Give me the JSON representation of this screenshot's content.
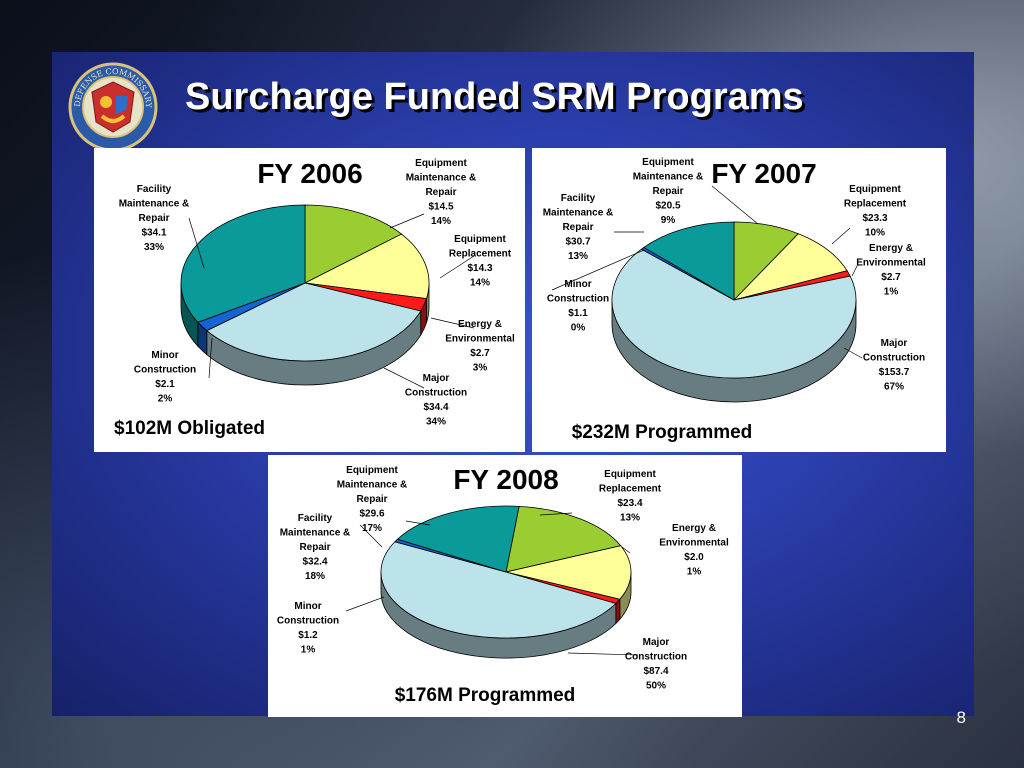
{
  "slide": {
    "title": "Surcharge Funded SRM Programs",
    "page_number": "8"
  },
  "seal": {
    "icon": "agency-seal-icon",
    "text": "DEFENSE COMMISSARY AGENCY"
  },
  "colors": {
    "equipment_maintenance": "#9acd32",
    "equipment_replacement": "#ffff99",
    "energy_environmental": "#ff1a1a",
    "major_construction": "#bde3ea",
    "minor_construction": "#1464d2",
    "facility_maintenance": "#0a9a9a"
  },
  "chart_data": [
    {
      "type": "pie",
      "title": "FY 2006",
      "total_note": "$102M Obligated",
      "slices": [
        {
          "key": "equipment_maintenance",
          "lines": [
            "Equipment",
            "Maintenance &",
            "Repair",
            "$14.5",
            "14%"
          ],
          "value": 14.5,
          "percent": 14
        },
        {
          "key": "equipment_replacement",
          "lines": [
            "Equipment",
            "Replacement",
            "$14.3",
            "14%"
          ],
          "value": 14.3,
          "percent": 14
        },
        {
          "key": "energy_environmental",
          "lines": [
            "Energy &",
            "Environmental",
            "$2.7",
            "3%"
          ],
          "value": 2.7,
          "percent": 3
        },
        {
          "key": "major_construction",
          "lines": [
            "Major",
            "Construction",
            "$34.4",
            "34%"
          ],
          "value": 34.4,
          "percent": 34
        },
        {
          "key": "minor_construction",
          "lines": [
            "Minor",
            "Construction",
            "$2.1",
            "2%"
          ],
          "value": 2.1,
          "percent": 2
        },
        {
          "key": "facility_maintenance",
          "lines": [
            "Facility",
            "Maintenance &",
            "Repair",
            "$34.1",
            "33%"
          ],
          "value": 34.1,
          "percent": 33
        }
      ]
    },
    {
      "type": "pie",
      "title": "FY 2007",
      "total_note": "$232M Programmed",
      "slices": [
        {
          "key": "equipment_maintenance",
          "lines": [
            "Equipment",
            "Maintenance &",
            "Repair",
            "$20.5",
            "9%"
          ],
          "value": 20.5,
          "percent": 9
        },
        {
          "key": "equipment_replacement",
          "lines": [
            "Equipment",
            "Replacement",
            "$23.3",
            "10%"
          ],
          "value": 23.3,
          "percent": 10
        },
        {
          "key": "energy_environmental",
          "lines": [
            "Energy &",
            "Environmental",
            "$2.7",
            "1%"
          ],
          "value": 2.7,
          "percent": 1
        },
        {
          "key": "major_construction",
          "lines": [
            "Major",
            "Construction",
            "$153.7",
            "67%"
          ],
          "value": 153.7,
          "percent": 67
        },
        {
          "key": "minor_construction",
          "lines": [
            "Minor",
            "Construction",
            "$1.1",
            "0%"
          ],
          "value": 1.1,
          "percent": 0
        },
        {
          "key": "facility_maintenance",
          "lines": [
            "Facility",
            "Maintenance &",
            "Repair",
            "$30.7",
            "13%"
          ],
          "value": 30.7,
          "percent": 13
        }
      ]
    },
    {
      "type": "pie",
      "title": "FY 2008",
      "total_note": "$176M Programmed",
      "slices": [
        {
          "key": "equipment_maintenance",
          "lines": [
            "Equipment",
            "Maintenance &",
            "Repair",
            "$29.6",
            "17%"
          ],
          "value": 29.6,
          "percent": 17
        },
        {
          "key": "equipment_replacement",
          "lines": [
            "Equipment",
            "Replacement",
            "$23.4",
            "13%"
          ],
          "value": 23.4,
          "percent": 13
        },
        {
          "key": "energy_environmental",
          "lines": [
            "Energy &",
            "Environmental",
            "$2.0",
            "1%"
          ],
          "value": 2.0,
          "percent": 1
        },
        {
          "key": "major_construction",
          "lines": [
            "Major",
            "Construction",
            "$87.4",
            "50%"
          ],
          "value": 87.4,
          "percent": 50
        },
        {
          "key": "minor_construction",
          "lines": [
            "Minor",
            "Construction",
            "$1.2",
            "1%"
          ],
          "value": 1.2,
          "percent": 1
        },
        {
          "key": "facility_maintenance",
          "lines": [
            "Facility",
            "Maintenance &",
            "Repair",
            "$32.4",
            "18%"
          ],
          "value": 32.4,
          "percent": 18
        }
      ]
    }
  ]
}
